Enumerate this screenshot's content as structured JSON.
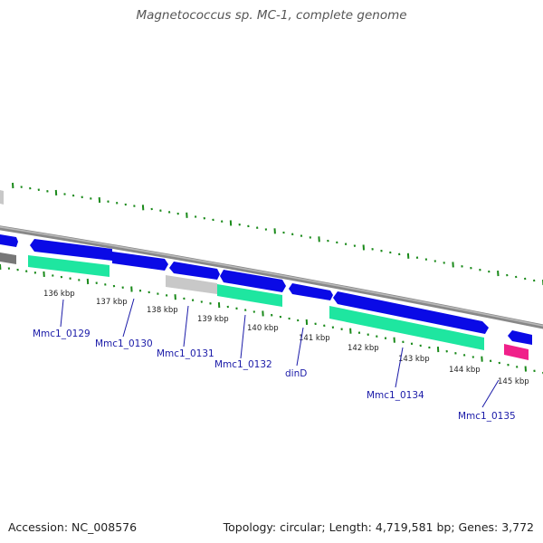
{
  "title": "Magnetococcus sp. MC-1, complete genome",
  "footer": {
    "accession": "Accession: NC_008576",
    "summary": "Topology: circular; Length: 4,719,581 bp; Genes: 3,772"
  },
  "colors": {
    "backbone": "#888888",
    "cds_forward": "#0a0ae6",
    "cds_reverse": "#0a0ae6",
    "rna_green": "#1ee6a0",
    "pseudo_gray": "#c8c8c8",
    "pink": "#f0208a",
    "tick_green": "#1a8a1a",
    "label_blue": "#1a1aa8"
  },
  "ruler": [
    {
      "label": "136 kbp"
    },
    {
      "label": "137 kbp"
    },
    {
      "label": "138 kbp"
    },
    {
      "label": "139 kbp"
    },
    {
      "label": "140 kbp"
    },
    {
      "label": "141 kbp"
    },
    {
      "label": "142 kbp"
    },
    {
      "label": "143 kbp"
    },
    {
      "label": "144 kbp"
    },
    {
      "label": "145 kbp"
    }
  ],
  "gene_labels": [
    {
      "text": "Mmc1_0129"
    },
    {
      "text": "Mmc1_0130"
    },
    {
      "text": "Mmc1_0131"
    },
    {
      "text": "Mmc1_0132"
    },
    {
      "text": "dinD"
    },
    {
      "text": "Mmc1_0134"
    },
    {
      "text": "Mmc1_0135"
    }
  ]
}
